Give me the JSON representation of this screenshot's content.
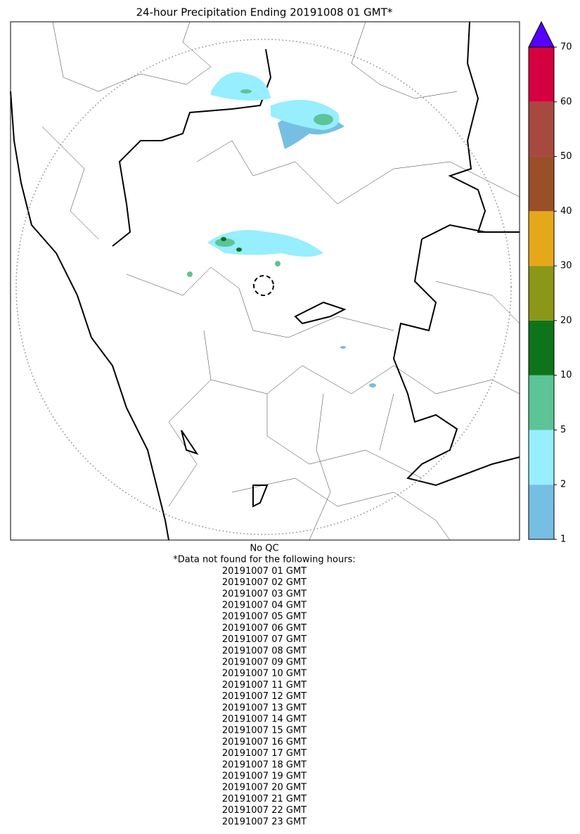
{
  "title": "24-hour Precipitation Ending 20191008 01 GMT*",
  "colorbar": {
    "ticks": [
      1,
      2,
      5,
      10,
      20,
      30,
      40,
      50,
      60,
      70
    ],
    "colors": [
      "#76bfe3",
      "#96eefe",
      "#5cc497",
      "#0e7419",
      "#8c9617",
      "#e6a81b",
      "#9b4f28",
      "#a8493f",
      "#d5003f"
    ],
    "extend_color": "#5500ff"
  },
  "footer": [
    "No QC",
    "*Data not found for the following hours:",
    "20191007 01 GMT",
    "20191007 02 GMT",
    "20191007 03 GMT",
    "20191007 04 GMT",
    "20191007 05 GMT",
    "20191007 06 GMT",
    "20191007 07 GMT",
    "20191007 08 GMT",
    "20191007 09 GMT",
    "20191007 10 GMT",
    "20191007 11 GMT",
    "20191007 12 GMT",
    "20191007 13 GMT",
    "20191007 14 GMT",
    "20191007 15 GMT",
    "20191007 16 GMT",
    "20191007 17 GMT",
    "20191007 18 GMT",
    "20191007 19 GMT",
    "20191007 20 GMT",
    "20191007 21 GMT",
    "20191007 22 GMT",
    "20191007 23 GMT"
  ]
}
